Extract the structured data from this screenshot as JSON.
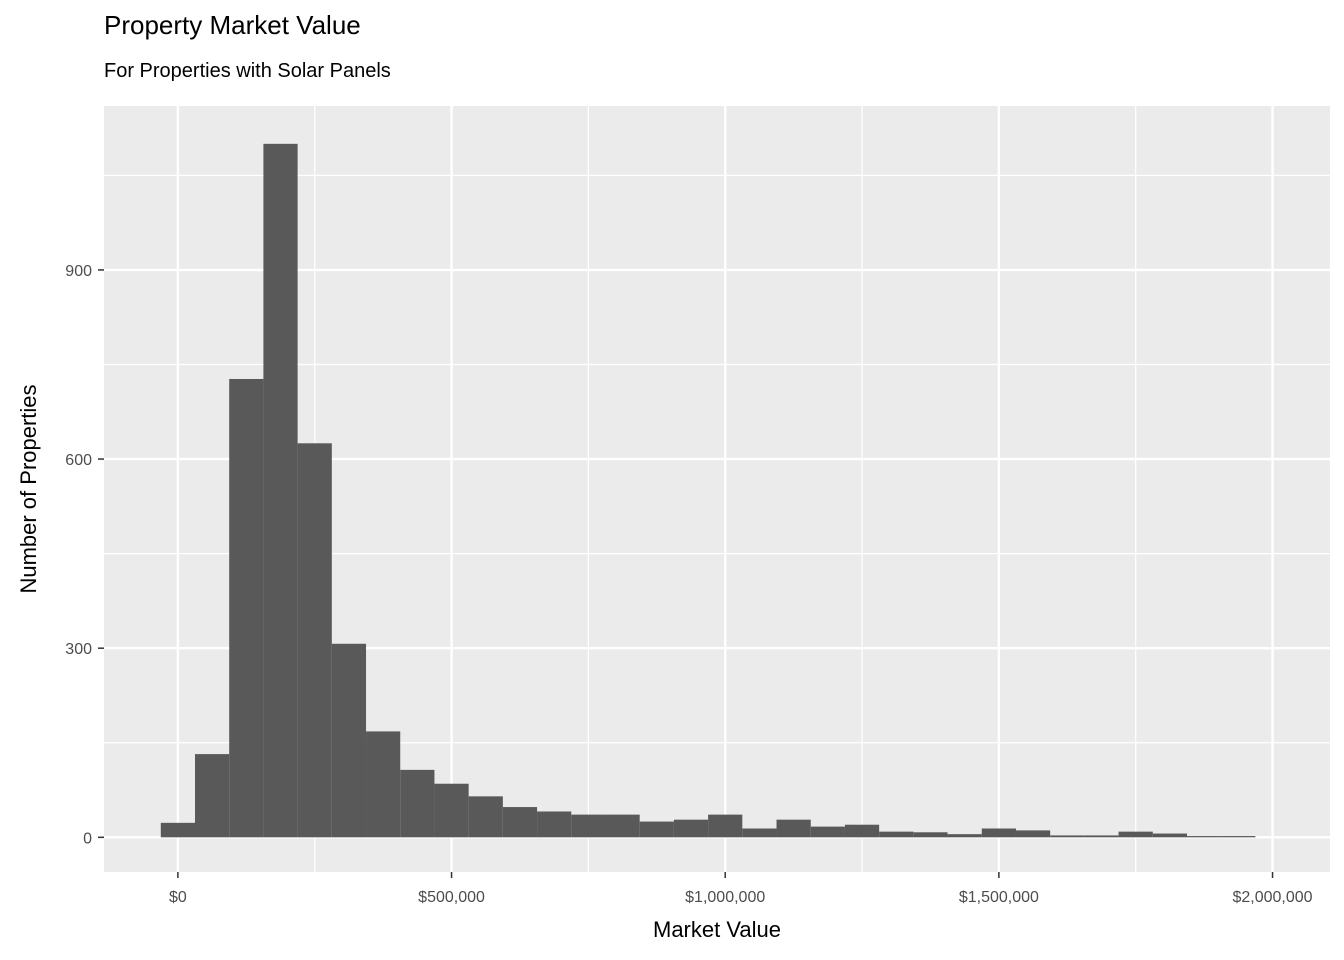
{
  "chart_data": {
    "type": "bar",
    "title": "Property Market Value",
    "subtitle": "For Properties with Solar Panels",
    "xlabel": "Market Value",
    "ylabel": "Number of Properties",
    "bin_width": 62500,
    "bins": [
      {
        "start": -31250,
        "end": 31250,
        "count": 23
      },
      {
        "start": 31250,
        "end": 93750,
        "count": 132
      },
      {
        "start": 93750,
        "end": 156250,
        "count": 727
      },
      {
        "start": 156250,
        "end": 218750,
        "count": 1100
      },
      {
        "start": 218750,
        "end": 281250,
        "count": 625
      },
      {
        "start": 281250,
        "end": 343750,
        "count": 307
      },
      {
        "start": 343750,
        "end": 406250,
        "count": 168
      },
      {
        "start": 406250,
        "end": 468750,
        "count": 107
      },
      {
        "start": 468750,
        "end": 531250,
        "count": 85
      },
      {
        "start": 531250,
        "end": 593750,
        "count": 65
      },
      {
        "start": 593750,
        "end": 656250,
        "count": 48
      },
      {
        "start": 656250,
        "end": 718750,
        "count": 41
      },
      {
        "start": 718750,
        "end": 781250,
        "count": 36
      },
      {
        "start": 781250,
        "end": 843750,
        "count": 36
      },
      {
        "start": 843750,
        "end": 906250,
        "count": 25
      },
      {
        "start": 906250,
        "end": 968750,
        "count": 28
      },
      {
        "start": 968750,
        "end": 1031250,
        "count": 36
      },
      {
        "start": 1031250,
        "end": 1093750,
        "count": 14
      },
      {
        "start": 1093750,
        "end": 1156250,
        "count": 28
      },
      {
        "start": 1156250,
        "end": 1218750,
        "count": 17
      },
      {
        "start": 1218750,
        "end": 1281250,
        "count": 20
      },
      {
        "start": 1281250,
        "end": 1343750,
        "count": 9
      },
      {
        "start": 1343750,
        "end": 1406250,
        "count": 8
      },
      {
        "start": 1406250,
        "end": 1468750,
        "count": 5
      },
      {
        "start": 1468750,
        "end": 1531250,
        "count": 14
      },
      {
        "start": 1531250,
        "end": 1593750,
        "count": 11
      },
      {
        "start": 1593750,
        "end": 1656250,
        "count": 3
      },
      {
        "start": 1656250,
        "end": 1718750,
        "count": 3
      },
      {
        "start": 1718750,
        "end": 1781250,
        "count": 9
      },
      {
        "start": 1781250,
        "end": 1843750,
        "count": 6
      },
      {
        "start": 1843750,
        "end": 1906250,
        "count": 2
      },
      {
        "start": 1906250,
        "end": 1968750,
        "count": 2
      }
    ],
    "xlim": [
      -135000,
      2105000
    ],
    "ylim": [
      -55,
      1160
    ],
    "x_ticks": [
      0,
      500000,
      1000000,
      1500000,
      2000000
    ],
    "x_tick_labels": [
      "$0",
      "$500,000",
      "$1,000,000",
      "$1,500,000",
      "$2,000,000"
    ],
    "x_minor": [
      250000,
      750000,
      1250000,
      1750000
    ],
    "y_ticks": [
      0,
      300,
      600,
      900
    ],
    "y_tick_labels": [
      "0",
      "300",
      "600",
      "900"
    ],
    "y_minor": [
      150,
      450,
      750,
      1050
    ],
    "grid": true,
    "legend": "none",
    "colors": {
      "bar": "#595959",
      "panel_background": "#ebebeb",
      "grid": "#ffffff",
      "tick": "#333333",
      "tick_label": "#4d4d4d"
    }
  }
}
